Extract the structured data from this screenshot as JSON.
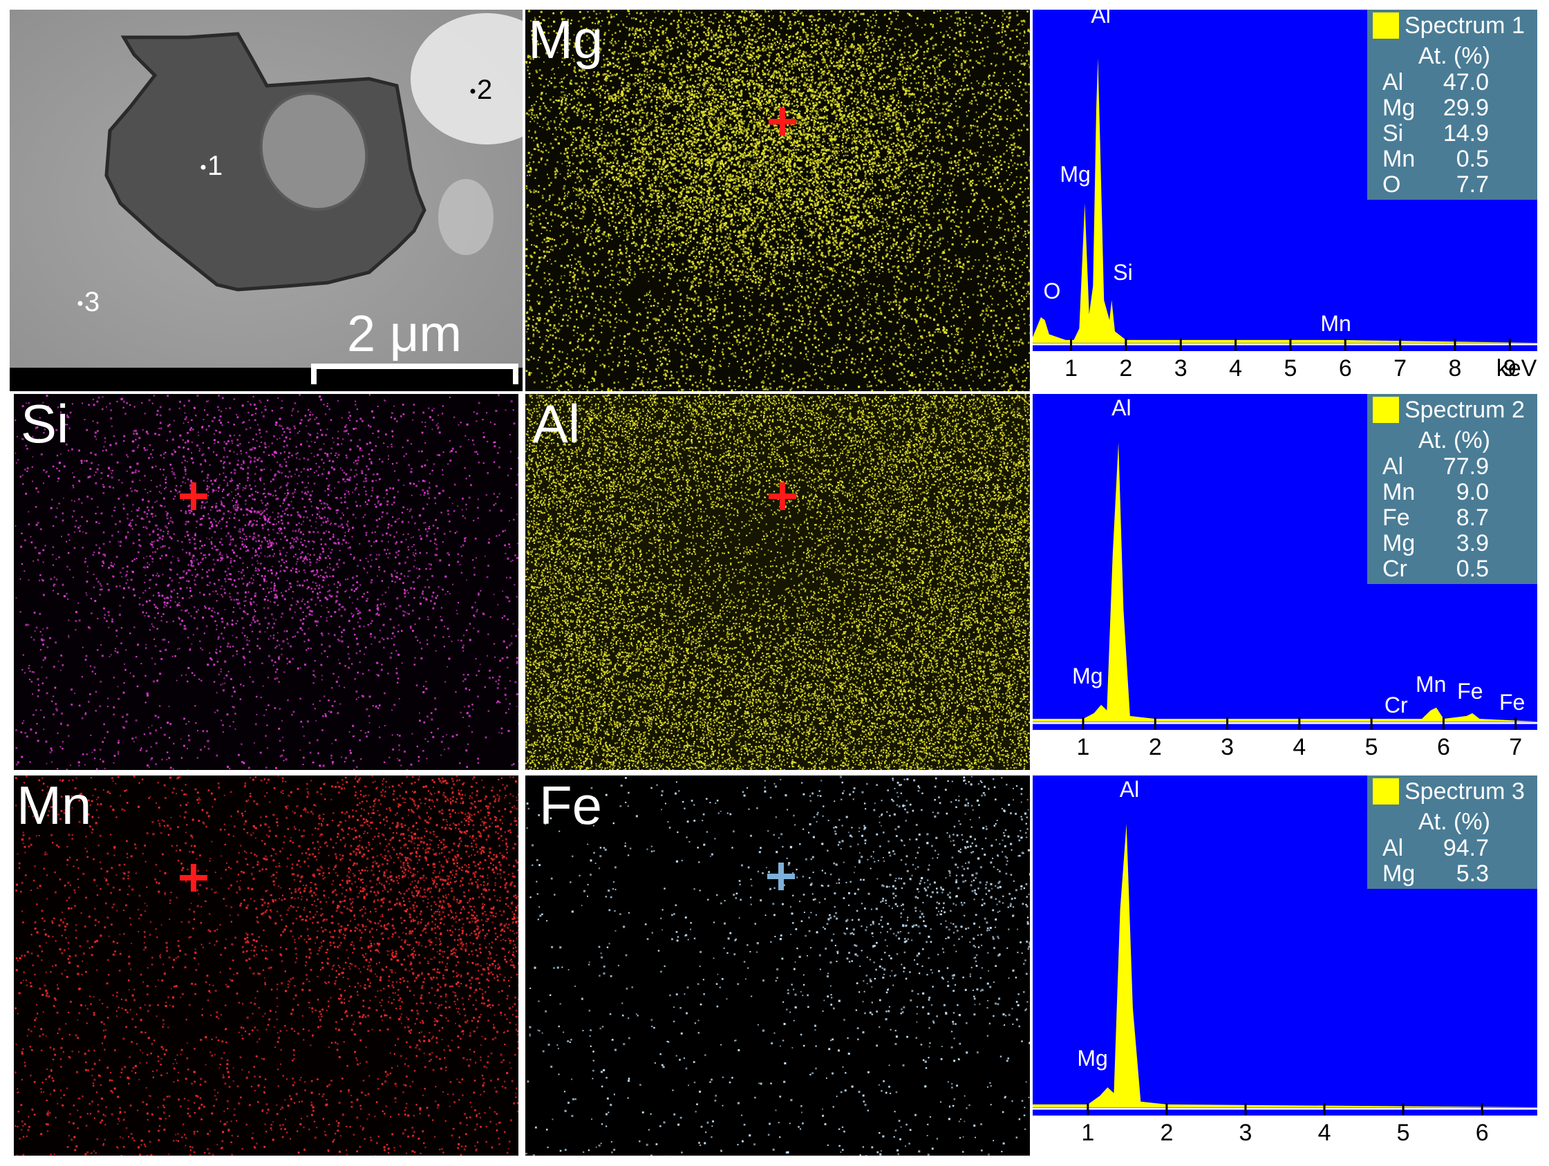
{
  "sem": {
    "points": [
      {
        "id": "p1",
        "label": "1"
      },
      {
        "id": "p2",
        "label": "2"
      },
      {
        "id": "p3",
        "label": "3"
      }
    ],
    "scale_label": "2 μm"
  },
  "maps": [
    {
      "id": "mg",
      "label": "Mg",
      "color": "#e6e62a"
    },
    {
      "id": "si",
      "label": "Si",
      "color": "#e03ad8"
    },
    {
      "id": "al",
      "label": "Al",
      "color": "#e6e62a"
    },
    {
      "id": "mn",
      "label": "Mn",
      "color": "#ff2a2a"
    },
    {
      "id": "fe",
      "label": "Fe",
      "color": "#c8e6ff"
    }
  ],
  "chart_data": [
    {
      "type": "area",
      "title": "Spectrum 1",
      "xlabel": "keV",
      "xlim": [
        0.3,
        9.5
      ],
      "ticks": [
        "1",
        "2",
        "3",
        "4",
        "5",
        "6",
        "7",
        "8",
        "9"
      ],
      "table_header": "At. (%)",
      "composition": [
        {
          "element": "Al",
          "value": "47.0"
        },
        {
          "element": "Mg",
          "value": "29.9"
        },
        {
          "element": "Si",
          "value": "14.9"
        },
        {
          "element": "Mn",
          "value": "0.5"
        },
        {
          "element": "O",
          "value": "7.7"
        }
      ],
      "peaks": [
        {
          "label": "O",
          "x": 0.52,
          "y": 0.08
        },
        {
          "label": "Mg",
          "x": 1.25,
          "y": 0.49
        },
        {
          "label": "Al",
          "x": 1.49,
          "y": 1.0
        },
        {
          "label": "Si",
          "x": 1.74,
          "y": 0.15
        },
        {
          "label": "Mn",
          "x": 5.9,
          "y": 0.01
        }
      ],
      "series": [
        {
          "values": [
            [
              0.3,
              0.02
            ],
            [
              0.45,
              0.09
            ],
            [
              0.52,
              0.08
            ],
            [
              0.6,
              0.03
            ],
            [
              0.75,
              0.02
            ],
            [
              0.9,
              0.01
            ],
            [
              1.05,
              0.01
            ],
            [
              1.15,
              0.05
            ],
            [
              1.25,
              0.49
            ],
            [
              1.33,
              0.1
            ],
            [
              1.4,
              0.2
            ],
            [
              1.46,
              0.82
            ],
            [
              1.49,
              1.0
            ],
            [
              1.53,
              0.7
            ],
            [
              1.6,
              0.15
            ],
            [
              1.7,
              0.08
            ],
            [
              1.74,
              0.15
            ],
            [
              1.8,
              0.04
            ],
            [
              2.0,
              0.01
            ],
            [
              5.9,
              0.01
            ],
            [
              9.5,
              0.0
            ]
          ]
        }
      ]
    },
    {
      "type": "area",
      "title": "Spectrum 2",
      "xlabel": "",
      "xlim": [
        0.3,
        7.3
      ],
      "ticks": [
        "1",
        "2",
        "3",
        "4",
        "5",
        "6",
        "7"
      ],
      "table_header": "At. (%)",
      "composition": [
        {
          "element": "Al",
          "value": "77.9"
        },
        {
          "element": "Mn",
          "value": "9.0"
        },
        {
          "element": "Fe",
          "value": "8.7"
        },
        {
          "element": "Mg",
          "value": "3.9"
        },
        {
          "element": "Cr",
          "value": "0.5"
        }
      ],
      "peaks": [
        {
          "label": "Mg",
          "x": 1.25,
          "y": 0.06
        },
        {
          "label": "Al",
          "x": 1.49,
          "y": 1.0
        },
        {
          "label": "Cr",
          "x": 5.41,
          "y": 0.01
        },
        {
          "label": "Mn",
          "x": 5.9,
          "y": 0.05
        },
        {
          "label": "Fe",
          "x": 6.4,
          "y": 0.03
        },
        {
          "label": "Fe",
          "x": 7.06,
          "y": 0.01
        }
      ],
      "series": [
        {
          "values": [
            [
              0.3,
              0.01
            ],
            [
              1.0,
              0.01
            ],
            [
              1.15,
              0.03
            ],
            [
              1.25,
              0.06
            ],
            [
              1.33,
              0.04
            ],
            [
              1.41,
              0.6
            ],
            [
              1.49,
              1.0
            ],
            [
              1.56,
              0.4
            ],
            [
              1.65,
              0.02
            ],
            [
              2.0,
              0.01
            ],
            [
              5.7,
              0.01
            ],
            [
              5.82,
              0.04
            ],
            [
              5.9,
              0.05
            ],
            [
              6.0,
              0.01
            ],
            [
              6.32,
              0.02
            ],
            [
              6.4,
              0.03
            ],
            [
              6.5,
              0.01
            ],
            [
              7.3,
              0.0
            ]
          ]
        }
      ]
    },
    {
      "type": "area",
      "title": "Spectrum 3",
      "xlabel": "",
      "xlim": [
        0.3,
        6.7
      ],
      "ticks": [
        "1",
        "2",
        "3",
        "4",
        "5",
        "6"
      ],
      "table_header": "At. (%)",
      "composition": [
        {
          "element": "Al",
          "value": "94.7"
        },
        {
          "element": "Mg",
          "value": "5.3"
        }
      ],
      "peaks": [
        {
          "label": "Mg",
          "x": 1.25,
          "y": 0.07
        },
        {
          "label": "Al",
          "x": 1.49,
          "y": 1.0
        }
      ],
      "series": [
        {
          "values": [
            [
              0.3,
              0.01
            ],
            [
              1.0,
              0.01
            ],
            [
              1.15,
              0.04
            ],
            [
              1.25,
              0.07
            ],
            [
              1.33,
              0.05
            ],
            [
              1.41,
              0.7
            ],
            [
              1.49,
              1.0
            ],
            [
              1.57,
              0.35
            ],
            [
              1.67,
              0.02
            ],
            [
              2.0,
              0.01
            ],
            [
              6.7,
              0.0
            ]
          ]
        }
      ]
    }
  ]
}
